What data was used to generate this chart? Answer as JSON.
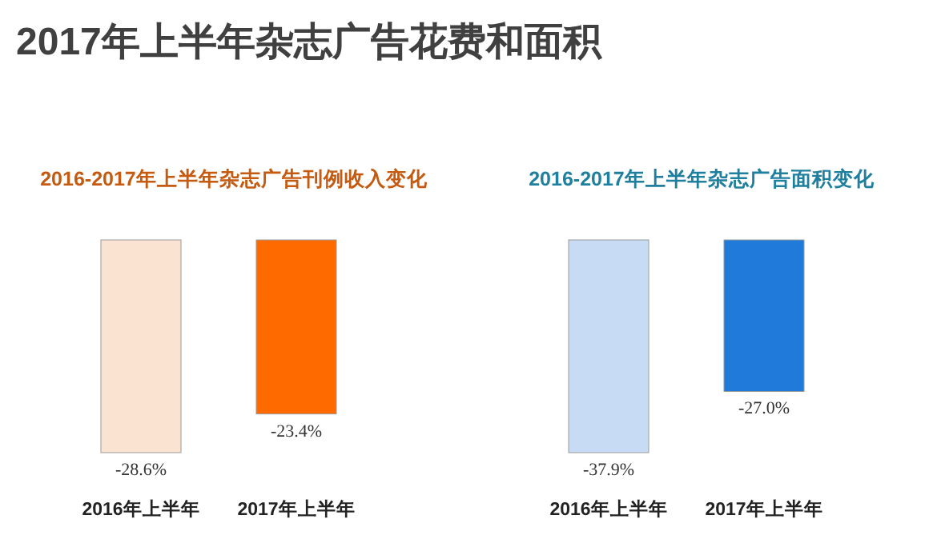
{
  "chart_data": [
    {
      "type": "bar",
      "title": "2016-2017年上半年杂志广告刊例收入变化",
      "annotations": [
        "2017年上半年杂志广告花费和面积"
      ],
      "categories": [
        "2016年上半年",
        "2017年上半年"
      ],
      "values": [
        -28.6,
        -23.4
      ],
      "colors": [
        "#fbe3d2",
        "#ff6a00"
      ],
      "value_labels": [
        "-28.6%",
        "-23.4%"
      ]
    },
    {
      "type": "bar",
      "title": "2016-2017年上半年杂志广告面积变化",
      "categories": [
        "2016年上半年",
        "2017年上半年"
      ],
      "values": [
        -37.9,
        -27.0
      ],
      "colors": [
        "#c7dcf4",
        "#1f7ad9"
      ],
      "value_labels": [
        "-37.9%",
        "-27.0%"
      ]
    }
  ]
}
